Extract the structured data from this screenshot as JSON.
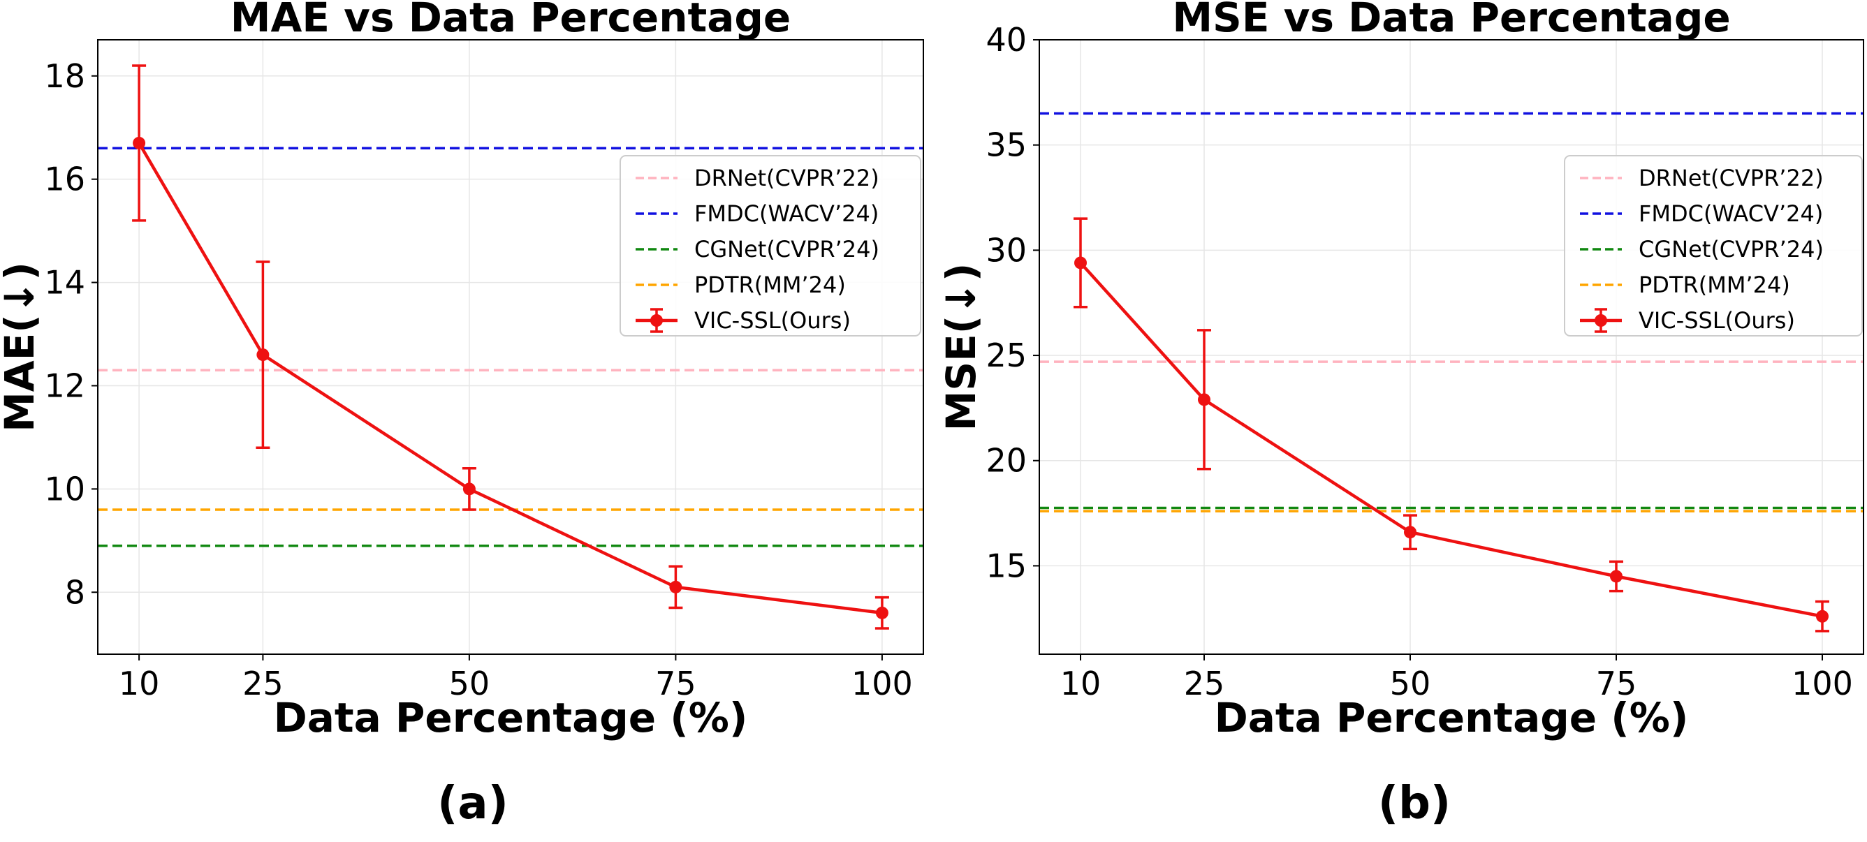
{
  "chart_data": [
    {
      "type": "line",
      "title": "MAE vs Data Percentage",
      "xlabel": "Data Percentage (%)",
      "ylabel": "MAE(↓)",
      "caption": "(a)",
      "x": [
        10,
        25,
        50,
        75,
        100
      ],
      "x_ticks": [
        "10",
        "25",
        "50",
        "75",
        "100"
      ],
      "y_ticks": [
        "8",
        "10",
        "12",
        "14",
        "16",
        "18"
      ],
      "y_tick_values": [
        8,
        10,
        12,
        14,
        16,
        18
      ],
      "xlim": [
        5,
        105
      ],
      "ylim": [
        6.8,
        18.7
      ],
      "grid": true,
      "legend_position": "upper-right",
      "baselines": [
        {
          "name": "DRNet(CVPR’22)",
          "value": 12.3,
          "color": "#ffb3bf"
        },
        {
          "name": "FMDC(WACV’24)",
          "value": 16.6,
          "color": "#1010e0"
        },
        {
          "name": "CGNet(CVPR’24)",
          "value": 8.9,
          "color": "#118811"
        },
        {
          "name": "PDTR(MM’24)",
          "value": 9.6,
          "color": "#ffa500"
        }
      ],
      "series": [
        {
          "name": "VIC-SSL(Ours)",
          "color": "#ee1111",
          "values": [
            16.7,
            12.6,
            10.0,
            8.1,
            7.6
          ],
          "errors": [
            1.5,
            1.8,
            0.4,
            0.4,
            0.3
          ]
        }
      ]
    },
    {
      "type": "line",
      "title": "MSE vs Data Percentage",
      "xlabel": "Data Percentage (%)",
      "ylabel": "MSE(↓)",
      "caption": "(b)",
      "x": [
        10,
        25,
        50,
        75,
        100
      ],
      "x_ticks": [
        "10",
        "25",
        "50",
        "75",
        "100"
      ],
      "y_ticks": [
        "15",
        "20",
        "25",
        "30",
        "35",
        "40"
      ],
      "y_tick_values": [
        15,
        20,
        25,
        30,
        35,
        40
      ],
      "xlim": [
        5,
        105
      ],
      "ylim": [
        10.8,
        40
      ],
      "grid": true,
      "legend_position": "upper-right",
      "baselines": [
        {
          "name": "DRNet(CVPR’22)",
          "value": 24.7,
          "color": "#ffb3bf"
        },
        {
          "name": "FMDC(WACV’24)",
          "value": 36.5,
          "color": "#1010e0"
        },
        {
          "name": "CGNet(CVPR’24)",
          "value": 17.75,
          "color": "#118811"
        },
        {
          "name": "PDTR(MM’24)",
          "value": 17.6,
          "color": "#ffa500"
        }
      ],
      "series": [
        {
          "name": "VIC-SSL(Ours)",
          "color": "#ee1111",
          "values": [
            29.4,
            22.9,
            16.6,
            14.5,
            12.6
          ],
          "errors": [
            2.1,
            3.3,
            0.8,
            0.7,
            0.7
          ]
        }
      ]
    }
  ]
}
